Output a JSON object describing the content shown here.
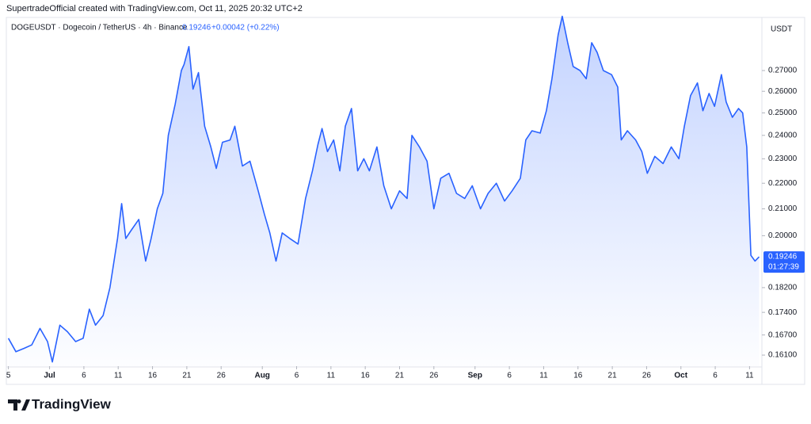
{
  "header": {
    "watermark": "SupertradeOfficial created with TradingView.com, Oct 11, 2025 20:32 UTC+2",
    "symbol": "DOGEUSDT · Dogecoin / TetherUS · 4h · Binance",
    "price": "0.19246",
    "change": "+0.00042 (+0.22%)"
  },
  "chart_data": {
    "type": "area",
    "log_scale": true,
    "currency": "USDT",
    "last_price": "0.19246",
    "countdown": "01:27:39",
    "xlim": [
      -0.3,
      109.8
    ],
    "ylim": [
      0.1578,
      0.2982
    ],
    "xticks": [
      {
        "value": 0,
        "label": "5"
      },
      {
        "value": 6,
        "label": "Jul"
      },
      {
        "value": 11,
        "label": "6"
      },
      {
        "value": 16,
        "label": "11"
      },
      {
        "value": 21,
        "label": "16"
      },
      {
        "value": 26,
        "label": "21"
      },
      {
        "value": 31,
        "label": "26"
      },
      {
        "value": 37,
        "label": "Aug"
      },
      {
        "value": 42,
        "label": "6"
      },
      {
        "value": 47,
        "label": "11"
      },
      {
        "value": 52,
        "label": "16"
      },
      {
        "value": 57,
        "label": "21"
      },
      {
        "value": 62,
        "label": "26"
      },
      {
        "value": 68,
        "label": "Sep"
      },
      {
        "value": 73,
        "label": "6"
      },
      {
        "value": 78,
        "label": "11"
      },
      {
        "value": 83,
        "label": "16"
      },
      {
        "value": 88,
        "label": "21"
      },
      {
        "value": 93,
        "label": "26"
      },
      {
        "value": 98,
        "label": "Oct"
      },
      {
        "value": 103,
        "label": "6"
      },
      {
        "value": 108,
        "label": "11"
      }
    ],
    "yticks": [
      {
        "value": 0.161,
        "label": "0.16100"
      },
      {
        "value": 0.167,
        "label": "0.16700"
      },
      {
        "value": 0.174,
        "label": "0.17400"
      },
      {
        "value": 0.182,
        "label": "0.18200"
      },
      {
        "value": 0.2,
        "label": "0.20000"
      },
      {
        "value": 0.21,
        "label": "0.21000"
      },
      {
        "value": 0.22,
        "label": "0.22000"
      },
      {
        "value": 0.23,
        "label": "0.23000"
      },
      {
        "value": 0.24,
        "label": "0.24000"
      },
      {
        "value": 0.25,
        "label": "0.25000"
      },
      {
        "value": 0.26,
        "label": "0.26000"
      },
      {
        "value": 0.27,
        "label": "0.27000"
      }
    ],
    "series": [
      {
        "name": "DOGEUSDT",
        "color": "#2962ff",
        "x": [
          0,
          1.1,
          2.3,
          3.4,
          4.6,
          5.7,
          6.4,
          7.5,
          8.6,
          9.8,
          10.9,
          11.8,
          12.7,
          13.8,
          14.8,
          15.9,
          16.5,
          17.1,
          17.9,
          19.0,
          20.0,
          20.8,
          21.7,
          22.5,
          23.3,
          24.3,
          25.2,
          25.6,
          26.3,
          26.9,
          27.7,
          28.6,
          29.5,
          30.3,
          31.2,
          32.3,
          33.0,
          34.1,
          35.2,
          36.4,
          37.3,
          38.1,
          39.0,
          39.9,
          41.0,
          42.2,
          43.3,
          44.3,
          45.1,
          45.7,
          46.5,
          47.4,
          48.3,
          49.1,
          50.0,
          50.9,
          51.8,
          52.6,
          53.7,
          54.7,
          55.8,
          57.0,
          58.1,
          58.8,
          59.9,
          61.0,
          62.0,
          63.0,
          64.2,
          65.3,
          66.5,
          67.6,
          68.8,
          69.9,
          71.1,
          72.3,
          73.4,
          74.6,
          75.4,
          76.3,
          77.5,
          78.4,
          79.2,
          80.1,
          80.7,
          81.5,
          82.3,
          83.3,
          84.2,
          85.0,
          85.8,
          86.7,
          87.9,
          88.8,
          89.3,
          90.2,
          91.4,
          92.3,
          93.1,
          94.2,
          95.4,
          96.6,
          97.7,
          98.5,
          99.4,
          100.4,
          101.2,
          102.1,
          102.9,
          103.9,
          104.6,
          105.5,
          106.4,
          107.0,
          107.6,
          108.2,
          108.8,
          109.4
        ],
        "values": [
          0.166,
          0.162,
          0.163,
          0.164,
          0.169,
          0.165,
          0.159,
          0.17,
          0.168,
          0.165,
          0.166,
          0.175,
          0.17,
          0.173,
          0.182,
          0.199,
          0.212,
          0.199,
          0.202,
          0.206,
          0.191,
          0.199,
          0.21,
          0.216,
          0.24,
          0.254,
          0.27,
          0.273,
          0.282,
          0.261,
          0.269,
          0.244,
          0.235,
          0.226,
          0.237,
          0.238,
          0.244,
          0.227,
          0.229,
          0.217,
          0.208,
          0.201,
          0.191,
          0.201,
          0.199,
          0.197,
          0.214,
          0.225,
          0.236,
          0.243,
          0.233,
          0.238,
          0.225,
          0.244,
          0.252,
          0.225,
          0.23,
          0.225,
          0.235,
          0.219,
          0.21,
          0.217,
          0.214,
          0.24,
          0.235,
          0.229,
          0.21,
          0.222,
          0.224,
          0.216,
          0.214,
          0.219,
          0.21,
          0.216,
          0.22,
          0.213,
          0.217,
          0.222,
          0.238,
          0.242,
          0.241,
          0.251,
          0.266,
          0.288,
          0.298,
          0.284,
          0.272,
          0.27,
          0.266,
          0.284,
          0.279,
          0.27,
          0.268,
          0.262,
          0.238,
          0.242,
          0.238,
          0.233,
          0.224,
          0.231,
          0.228,
          0.235,
          0.23,
          0.244,
          0.258,
          0.264,
          0.251,
          0.259,
          0.253,
          0.268,
          0.255,
          0.248,
          0.252,
          0.25,
          0.235,
          0.193,
          0.191,
          0.19246
        ]
      }
    ]
  },
  "footer": {
    "logo": "TradingView"
  }
}
